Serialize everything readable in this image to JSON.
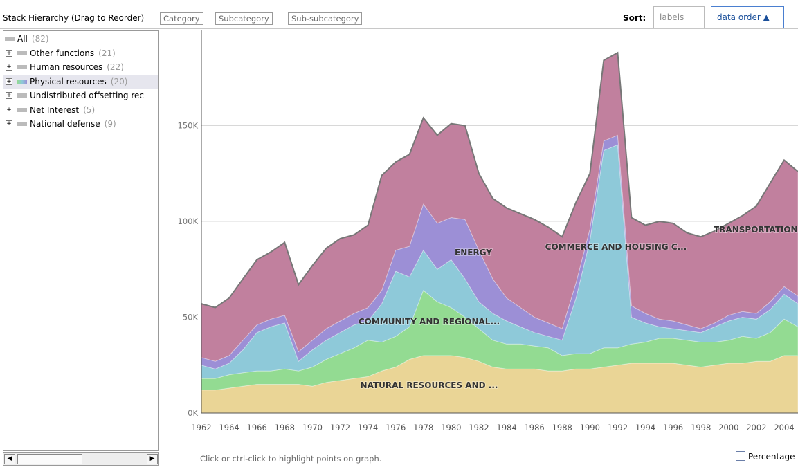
{
  "toolbar": {
    "title": "Stack Hierarchy (Drag to Reorder)",
    "breadcrumbs": [
      "Category",
      "Subcategory",
      "Sub-subcategory"
    ],
    "sort_label": "Sort:",
    "sort_options": [
      "labels",
      "data order ▲"
    ]
  },
  "tree": {
    "items": [
      {
        "label": "All",
        "count": "(82)"
      },
      {
        "label": "Other functions",
        "count": "(21)"
      },
      {
        "label": "Human resources",
        "count": "(22)"
      },
      {
        "label": "Physical resources",
        "count": "(20)"
      },
      {
        "label": "Undistributed offsetting rec",
        "count": ""
      },
      {
        "label": "Net Interest",
        "count": "(5)"
      },
      {
        "label": "National defense",
        "count": "(9)"
      }
    ]
  },
  "chart_data": {
    "type": "stacked_area",
    "x": [
      1962,
      1963,
      1964,
      1965,
      1966,
      1967,
      1968,
      1969,
      1970,
      1971,
      1972,
      1973,
      1974,
      1975,
      1976,
      1977,
      1978,
      1979,
      1980,
      1981,
      1982,
      1983,
      1984,
      1985,
      1986,
      1987,
      1988,
      1989,
      1990,
      1991,
      1992,
      1993,
      1994,
      1995,
      1996,
      1997,
      1998,
      1999,
      2000,
      2001,
      2002,
      2003,
      2004,
      2005
    ],
    "xlim": [
      1962,
      2005
    ],
    "xticks": [
      1962,
      1964,
      1966,
      1968,
      1970,
      1972,
      1974,
      1976,
      1978,
      1980,
      1982,
      1984,
      1986,
      1988,
      1990,
      1992,
      1994,
      1996,
      1998,
      2000,
      2002,
      2004
    ],
    "ylim": [
      0,
      200000
    ],
    "yticks": [
      {
        "value": 0,
        "label": "0K"
      },
      {
        "value": 50000,
        "label": "50K"
      },
      {
        "value": 100000,
        "label": "100K"
      },
      {
        "value": 150000,
        "label": "150K"
      }
    ],
    "grid": true,
    "series": [
      {
        "name": "NATURAL RESOURCES AND ...",
        "color": "#ead596",
        "values": [
          12000,
          12000,
          13000,
          14000,
          15000,
          15000,
          15000,
          15000,
          14000,
          16000,
          17000,
          18000,
          19000,
          22000,
          24000,
          28000,
          30000,
          30000,
          30000,
          29000,
          27000,
          24000,
          23000,
          23000,
          23000,
          22000,
          22000,
          23000,
          23000,
          24000,
          25000,
          26000,
          26000,
          26000,
          26000,
          25000,
          24000,
          25000,
          26000,
          26000,
          27000,
          27000,
          30000,
          30000
        ]
      },
      {
        "name": "COMMUNITY AND REGIONAL...",
        "color": "#93db92",
        "values": [
          6000,
          6000,
          7000,
          7000,
          7000,
          7000,
          8000,
          7000,
          10000,
          12000,
          14000,
          16000,
          19000,
          15000,
          16000,
          17000,
          34000,
          28000,
          25000,
          21000,
          17000,
          14000,
          13000,
          13000,
          12000,
          12000,
          8000,
          8000,
          8000,
          10000,
          9000,
          10000,
          11000,
          13000,
          13000,
          13000,
          13000,
          12000,
          12000,
          14000,
          12000,
          15000,
          19000,
          15000
        ]
      },
      {
        "name": "COMMERCE AND HOUSING C...",
        "color": "#8ec9d9",
        "values": [
          7000,
          5000,
          6000,
          12000,
          20000,
          23000,
          24000,
          5000,
          9000,
          10000,
          11000,
          12000,
          10000,
          20000,
          34000,
          26000,
          21000,
          17000,
          25000,
          20000,
          14000,
          14000,
          12000,
          9000,
          7000,
          6000,
          8000,
          29000,
          59000,
          103000,
          106000,
          14000,
          10000,
          6000,
          5000,
          5000,
          5000,
          8000,
          10000,
          10000,
          10000,
          12000,
          13000,
          12000
        ]
      },
      {
        "name": "ENERGY",
        "color": "#9c8fd6",
        "values": [
          4000,
          4000,
          4000,
          5000,
          4000,
          4000,
          4000,
          5000,
          5000,
          6000,
          6000,
          6000,
          7000,
          7000,
          11000,
          16000,
          24000,
          24000,
          22000,
          31000,
          27000,
          18000,
          12000,
          10000,
          8000,
          7000,
          6000,
          8000,
          6000,
          5000,
          5000,
          6000,
          5000,
          4000,
          4000,
          3000,
          2000,
          2000,
          3000,
          3000,
          3000,
          4000,
          4000,
          4000
        ]
      },
      {
        "name": "TRANSPORTATION",
        "color": "#c1809e",
        "values": [
          28000,
          28000,
          30000,
          32000,
          34000,
          35000,
          38000,
          35000,
          39000,
          42000,
          43000,
          41000,
          43000,
          60000,
          46000,
          48000,
          45000,
          46000,
          49000,
          49000,
          40000,
          42000,
          47000,
          49000,
          51000,
          50000,
          48000,
          42000,
          29000,
          42000,
          43000,
          46000,
          46000,
          51000,
          51000,
          48000,
          48000,
          48000,
          48000,
          50000,
          56000,
          62000,
          66000,
          65000
        ]
      }
    ]
  },
  "status": "Click or ctrl-click to highlight points on graph.",
  "percentage_label": "Percentage"
}
